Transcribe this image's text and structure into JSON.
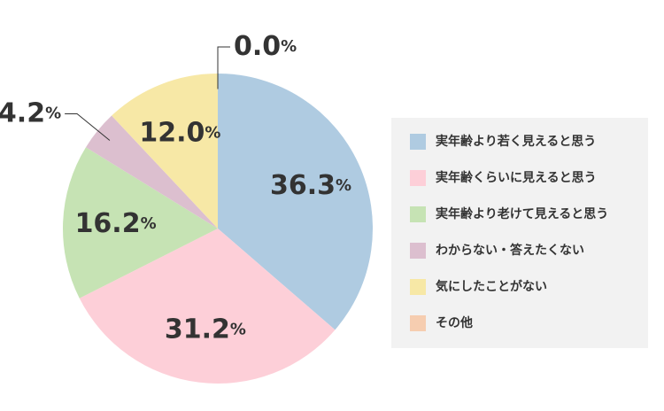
{
  "chart_data": {
    "type": "pie",
    "categories": [
      "実年齢より若く見えると思う",
      "実年齢くらいに見えると思う",
      "実年齢より老けて見えると思う",
      "わからない・答えたくない",
      "気にしたことがない",
      "その他"
    ],
    "values": [
      36.3,
      31.2,
      16.2,
      4.2,
      12.0,
      0.0
    ],
    "value_labels": [
      "36.3%",
      "31.2%",
      "16.2%",
      "4.2%",
      "12.0%",
      "0.0%"
    ],
    "colors": [
      "#afcbe1",
      "#fdcfd8",
      "#c6e3b4",
      "#dcbfcf",
      "#f7e8a6",
      "#f6cdb0"
    ],
    "legend": "right"
  }
}
